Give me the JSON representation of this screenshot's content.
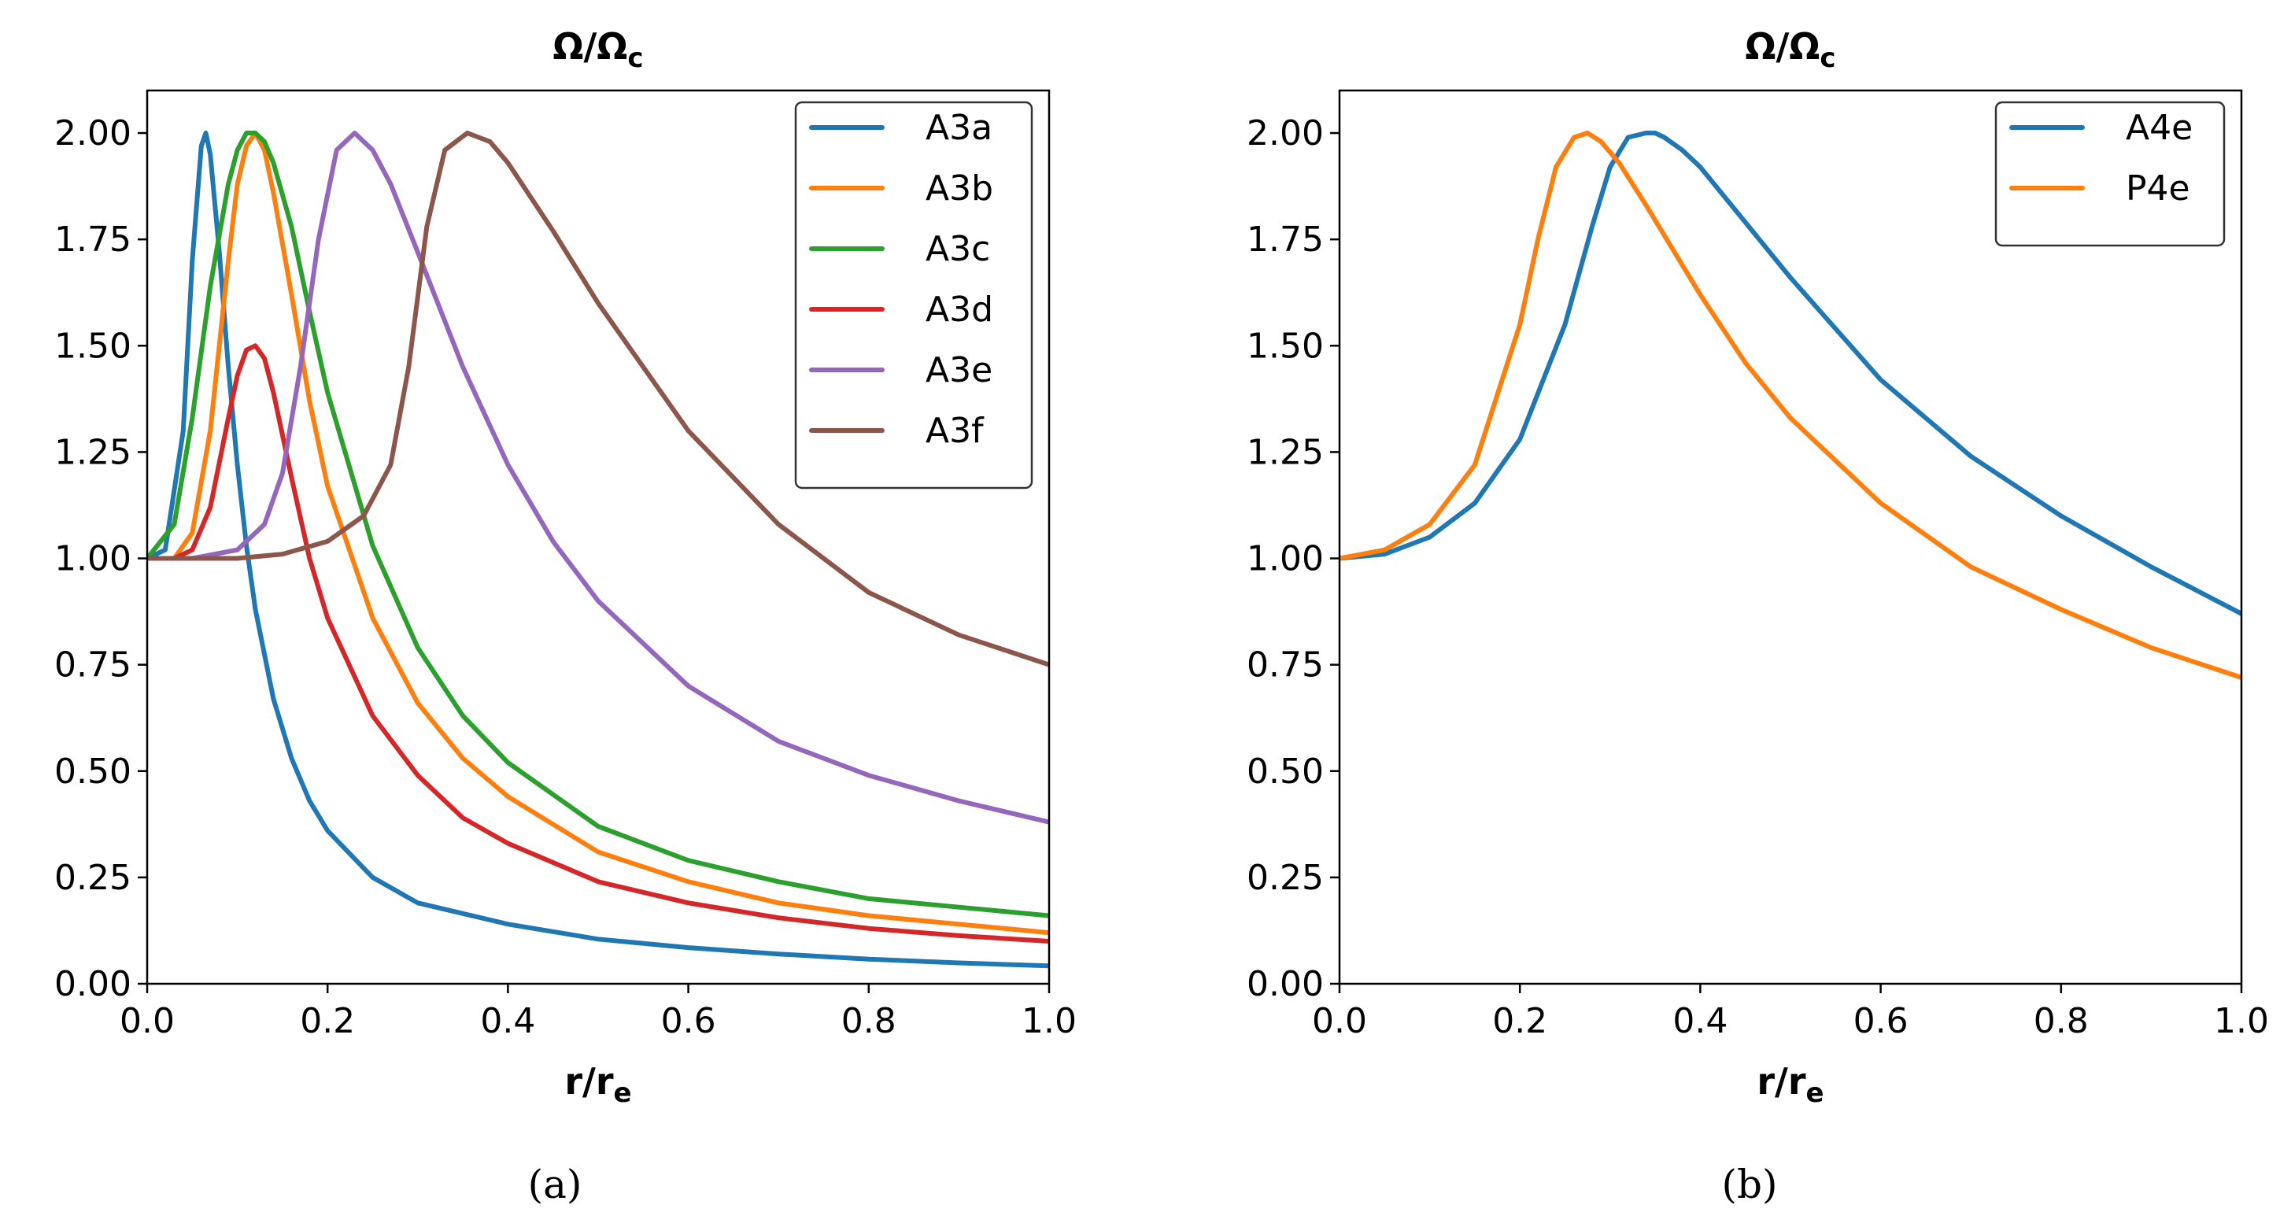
{
  "chart_data": [
    {
      "type": "line",
      "title": "Ω/Ωc",
      "title_main": "Ω/Ω",
      "title_sub": "c",
      "xlabel_main": "r/r",
      "xlabel_sub": "e",
      "ylabel": "",
      "xlim": [
        0.0,
        1.0
      ],
      "ylim": [
        0.0,
        2.1
      ],
      "xticks": [
        0.0,
        0.2,
        0.4,
        0.6,
        0.8,
        1.0
      ],
      "xtick_labels": [
        "0.0",
        "0.2",
        "0.4",
        "0.6",
        "0.8",
        "1.0"
      ],
      "yticks": [
        0.0,
        0.25,
        0.5,
        0.75,
        1.0,
        1.25,
        1.5,
        1.75,
        2.0
      ],
      "ytick_labels": [
        "0.00",
        "0.25",
        "0.50",
        "0.75",
        "1.00",
        "1.25",
        "1.50",
        "1.75",
        "2.00"
      ],
      "legend_position": "top-right",
      "caption": "(a)",
      "series": [
        {
          "name": "A3a",
          "color": "#1f77b4",
          "x": [
            0.0,
            0.02,
            0.04,
            0.05,
            0.06,
            0.065,
            0.07,
            0.08,
            0.09,
            0.1,
            0.11,
            0.12,
            0.14,
            0.16,
            0.18,
            0.2,
            0.25,
            0.3,
            0.4,
            0.5,
            0.6,
            0.7,
            0.8,
            0.9,
            1.0
          ],
          "y": [
            1.0,
            1.02,
            1.3,
            1.7,
            1.97,
            2.0,
            1.95,
            1.72,
            1.45,
            1.22,
            1.03,
            0.88,
            0.67,
            0.53,
            0.43,
            0.36,
            0.25,
            0.19,
            0.14,
            0.105,
            0.085,
            0.07,
            0.058,
            0.049,
            0.042
          ]
        },
        {
          "name": "A3b",
          "color": "#ff7f0e",
          "x": [
            0.0,
            0.03,
            0.05,
            0.07,
            0.09,
            0.1,
            0.11,
            0.12,
            0.13,
            0.14,
            0.16,
            0.18,
            0.2,
            0.25,
            0.3,
            0.35,
            0.4,
            0.5,
            0.6,
            0.7,
            0.8,
            0.9,
            1.0
          ],
          "y": [
            1.0,
            1.0,
            1.06,
            1.3,
            1.7,
            1.88,
            1.97,
            2.0,
            1.96,
            1.86,
            1.62,
            1.37,
            1.17,
            0.86,
            0.66,
            0.53,
            0.44,
            0.31,
            0.24,
            0.19,
            0.16,
            0.14,
            0.12
          ]
        },
        {
          "name": "A3c",
          "color": "#2ca02c",
          "x": [
            0.0,
            0.03,
            0.05,
            0.07,
            0.09,
            0.1,
            0.11,
            0.12,
            0.13,
            0.14,
            0.16,
            0.18,
            0.2,
            0.25,
            0.3,
            0.35,
            0.4,
            0.5,
            0.6,
            0.7,
            0.8,
            0.9,
            1.0
          ],
          "y": [
            1.0,
            1.08,
            1.33,
            1.64,
            1.88,
            1.96,
            2.0,
            2.0,
            1.98,
            1.93,
            1.78,
            1.58,
            1.39,
            1.03,
            0.79,
            0.63,
            0.52,
            0.37,
            0.29,
            0.24,
            0.2,
            0.18,
            0.16
          ]
        },
        {
          "name": "A3d",
          "color": "#d62728",
          "x": [
            0.0,
            0.03,
            0.05,
            0.07,
            0.09,
            0.1,
            0.11,
            0.12,
            0.13,
            0.14,
            0.16,
            0.18,
            0.2,
            0.25,
            0.3,
            0.35,
            0.4,
            0.5,
            0.6,
            0.7,
            0.8,
            0.9,
            1.0
          ],
          "y": [
            1.0,
            1.0,
            1.02,
            1.12,
            1.33,
            1.43,
            1.49,
            1.5,
            1.47,
            1.39,
            1.19,
            1.0,
            0.86,
            0.63,
            0.49,
            0.39,
            0.33,
            0.24,
            0.19,
            0.155,
            0.13,
            0.113,
            0.1
          ]
        },
        {
          "name": "A3e",
          "color": "#9467bd",
          "x": [
            0.0,
            0.05,
            0.1,
            0.13,
            0.15,
            0.17,
            0.19,
            0.21,
            0.23,
            0.25,
            0.27,
            0.3,
            0.35,
            0.4,
            0.45,
            0.5,
            0.6,
            0.7,
            0.8,
            0.9,
            1.0
          ],
          "y": [
            1.0,
            1.0,
            1.02,
            1.08,
            1.2,
            1.45,
            1.75,
            1.96,
            2.0,
            1.96,
            1.88,
            1.72,
            1.45,
            1.22,
            1.04,
            0.9,
            0.7,
            0.57,
            0.49,
            0.43,
            0.38
          ]
        },
        {
          "name": "A3f",
          "color": "#8c564b",
          "x": [
            0.0,
            0.05,
            0.1,
            0.15,
            0.2,
            0.24,
            0.27,
            0.29,
            0.31,
            0.33,
            0.355,
            0.38,
            0.4,
            0.45,
            0.5,
            0.6,
            0.7,
            0.8,
            0.9,
            1.0
          ],
          "y": [
            1.0,
            1.0,
            1.0,
            1.01,
            1.04,
            1.1,
            1.22,
            1.45,
            1.78,
            1.96,
            2.0,
            1.98,
            1.93,
            1.77,
            1.6,
            1.3,
            1.08,
            0.92,
            0.82,
            0.75
          ]
        }
      ]
    },
    {
      "type": "line",
      "title": "Ω/Ωc",
      "title_main": "Ω/Ω",
      "title_sub": "c",
      "xlabel_main": "r/r",
      "xlabel_sub": "e",
      "ylabel": "",
      "xlim": [
        0.0,
        1.0
      ],
      "ylim": [
        0.0,
        2.1
      ],
      "xticks": [
        0.0,
        0.2,
        0.4,
        0.6,
        0.8,
        1.0
      ],
      "xtick_labels": [
        "0.0",
        "0.2",
        "0.4",
        "0.6",
        "0.8",
        "1.0"
      ],
      "yticks": [
        0.0,
        0.25,
        0.5,
        0.75,
        1.0,
        1.25,
        1.5,
        1.75,
        2.0
      ],
      "ytick_labels": [
        "0.00",
        "0.25",
        "0.50",
        "0.75",
        "1.00",
        "1.25",
        "1.50",
        "1.75",
        "2.00"
      ],
      "legend_position": "top-right",
      "caption": "(b)",
      "series": [
        {
          "name": "A4e",
          "color": "#1f77b4",
          "x": [
            0.0,
            0.05,
            0.1,
            0.15,
            0.2,
            0.25,
            0.28,
            0.3,
            0.32,
            0.34,
            0.35,
            0.36,
            0.38,
            0.4,
            0.45,
            0.5,
            0.6,
            0.7,
            0.8,
            0.9,
            1.0
          ],
          "y": [
            1.0,
            1.01,
            1.05,
            1.13,
            1.28,
            1.55,
            1.78,
            1.92,
            1.99,
            2.0,
            2.0,
            1.99,
            1.96,
            1.92,
            1.79,
            1.66,
            1.42,
            1.24,
            1.1,
            0.98,
            0.87
          ]
        },
        {
          "name": "P4e",
          "color": "#ff7f0e",
          "x": [
            0.0,
            0.05,
            0.1,
            0.15,
            0.2,
            0.22,
            0.24,
            0.26,
            0.275,
            0.29,
            0.31,
            0.34,
            0.4,
            0.45,
            0.5,
            0.6,
            0.7,
            0.8,
            0.9,
            1.0
          ],
          "y": [
            1.0,
            1.02,
            1.08,
            1.22,
            1.55,
            1.75,
            1.92,
            1.99,
            2.0,
            1.98,
            1.93,
            1.83,
            1.62,
            1.46,
            1.33,
            1.13,
            0.98,
            0.88,
            0.79,
            0.72
          ]
        }
      ]
    }
  ]
}
